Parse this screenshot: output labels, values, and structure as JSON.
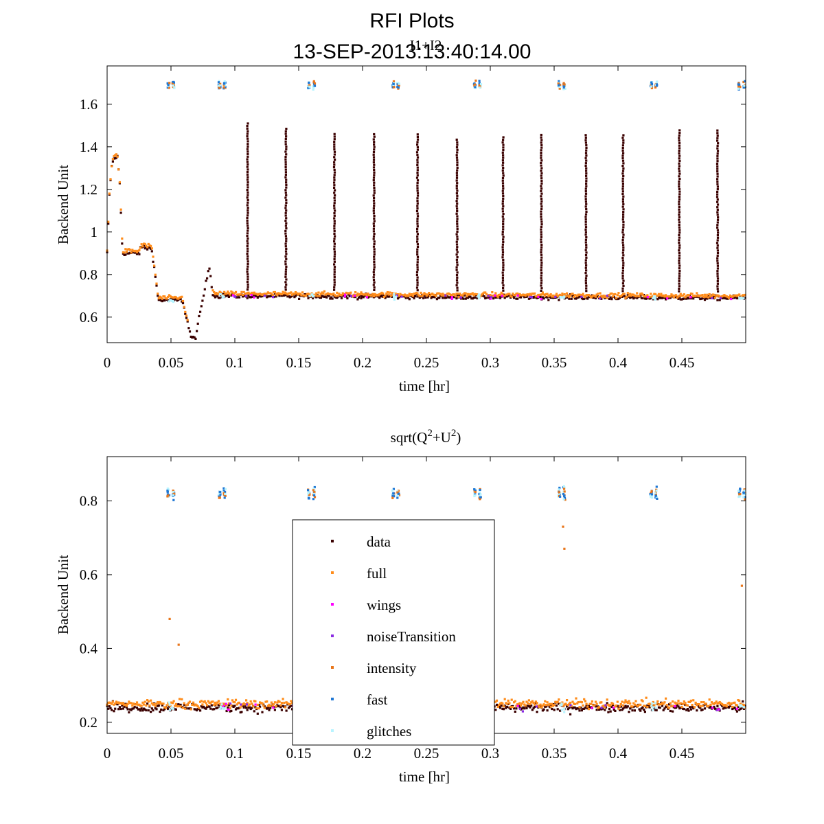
{
  "figure": {
    "title_line1": "RFI Plots",
    "title_line2": "13-SEP-2013:13:40:14.00"
  },
  "legend": {
    "entries": [
      {
        "label": "data",
        "color": "#3a0000"
      },
      {
        "label": "full",
        "color": "#ff8c1a"
      },
      {
        "label": "wings",
        "color": "#ff00ff"
      },
      {
        "label": "noiseTransition",
        "color": "#8a2be2"
      },
      {
        "label": "intensity",
        "color": "#e8751a"
      },
      {
        "label": "fast",
        "color": "#1f77d4"
      },
      {
        "label": "glitches",
        "color": "#b8f4ff"
      }
    ]
  },
  "chart_data": [
    {
      "type": "scatter",
      "title": "I1+I2",
      "xlabel": "time [hr]",
      "ylabel": "Backend Unit",
      "xlim": [
        0,
        0.5
      ],
      "ylim": [
        0.48,
        1.78
      ],
      "xticks": [
        0,
        0.05,
        0.1,
        0.15,
        0.2,
        0.25,
        0.3,
        0.35,
        0.4,
        0.45
      ],
      "xtick_labels": [
        "0",
        "0.05",
        "0.1",
        "0.15",
        "0.2",
        "0.25",
        "0.3",
        "0.35",
        "0.4",
        "0.45"
      ],
      "yticks": [
        0.6,
        0.8,
        1.0,
        1.2,
        1.4,
        1.6
      ],
      "ytick_labels": [
        "0.6",
        "0.8",
        "1",
        "1.2",
        "1.4",
        "1.6"
      ],
      "baseline_profile": [
        [
          0,
          0.9
        ],
        [
          0.002,
          1.2
        ],
        [
          0.004,
          1.33
        ],
        [
          0.008,
          1.36
        ],
        [
          0.01,
          1.22
        ],
        [
          0.012,
          0.9
        ],
        [
          0.025,
          0.9
        ],
        [
          0.027,
          0.93
        ],
        [
          0.035,
          0.92
        ],
        [
          0.038,
          0.78
        ],
        [
          0.04,
          0.68
        ],
        [
          0.059,
          0.68
        ],
        [
          0.062,
          0.6
        ],
        [
          0.066,
          0.5
        ],
        [
          0.069,
          0.5
        ],
        [
          0.08,
          0.84
        ],
        [
          0.083,
          0.7
        ],
        [
          0.5,
          0.69
        ]
      ],
      "spike_times": [
        0.11,
        0.14,
        0.178,
        0.209,
        0.243,
        0.274,
        0.31,
        0.34,
        0.375,
        0.404,
        0.448,
        0.478
      ],
      "spike_peaks": [
        1.51,
        1.49,
        1.47,
        1.46,
        1.46,
        1.44,
        1.45,
        1.46,
        1.46,
        1.46,
        1.48,
        1.48
      ],
      "noise_cal_times": [
        0.05,
        0.09,
        0.16,
        0.226,
        0.29,
        0.356,
        0.428,
        0.497
      ],
      "noise_cal_level": 1.69
    },
    {
      "type": "scatter",
      "title_base": "sqrt(Q",
      "title_sup1": "2",
      "title_mid": "+U",
      "title_sup2": "2",
      "title_end": ")",
      "xlabel": "time [hr]",
      "ylabel": "Backend Unit",
      "xlim": [
        0,
        0.5
      ],
      "ylim": [
        0.17,
        0.92
      ],
      "xticks": [
        0,
        0.05,
        0.1,
        0.15,
        0.2,
        0.25,
        0.3,
        0.35,
        0.4,
        0.45
      ],
      "xtick_labels": [
        "0",
        "0.05",
        "0.1",
        "0.15",
        "0.2",
        "0.25",
        "0.3",
        "0.35",
        "0.4",
        "0.45"
      ],
      "yticks": [
        0.2,
        0.4,
        0.6,
        0.8
      ],
      "ytick_labels": [
        "0.2",
        "0.4",
        "0.6",
        "0.8"
      ],
      "baseline_level": 0.24,
      "noise_cal_times": [
        0.05,
        0.09,
        0.16,
        0.226,
        0.29,
        0.356,
        0.428,
        0.497
      ],
      "noise_cal_level": 0.82,
      "outliers": [
        [
          0.049,
          0.48
        ],
        [
          0.056,
          0.41
        ],
        [
          0.357,
          0.73
        ],
        [
          0.358,
          0.67
        ],
        [
          0.497,
          0.57
        ]
      ]
    }
  ]
}
